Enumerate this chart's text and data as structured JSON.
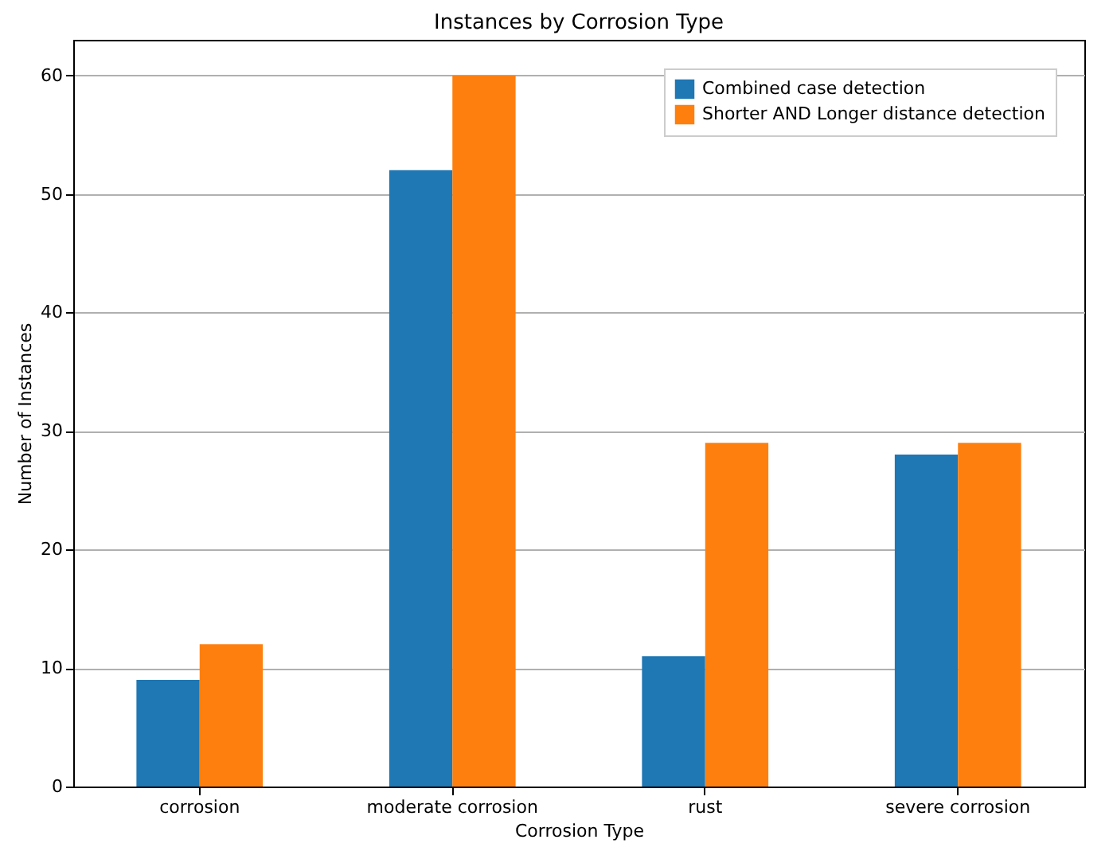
{
  "chart_data": {
    "type": "bar",
    "title": "Instances by Corrosion Type",
    "xlabel": "Corrosion Type",
    "ylabel": "Number of Instances",
    "categories": [
      "corrosion",
      "moderate corrosion",
      "rust",
      "severe corrosion"
    ],
    "series": [
      {
        "name": "Combined case detection",
        "color": "#1f77b4",
        "values": [
          9,
          52,
          11,
          28
        ]
      },
      {
        "name": "Shorter AND Longer distance detection",
        "color": "#ff7f0e",
        "values": [
          12,
          60,
          29,
          29
        ]
      }
    ],
    "ylim": [
      0,
      63
    ],
    "yticks": [
      0,
      10,
      20,
      30,
      40,
      50,
      60
    ],
    "grid": "y",
    "legend": "top right"
  }
}
